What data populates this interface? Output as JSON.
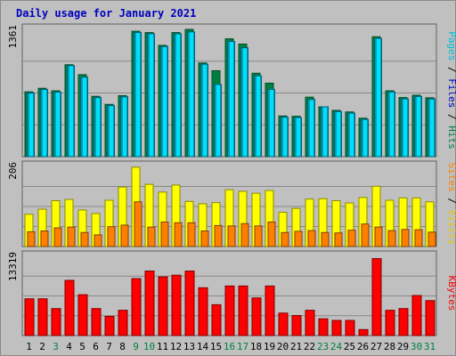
{
  "title": "Daily usage for January 2021",
  "colors": {
    "hits": "#008040",
    "files": "#00C8F8",
    "pages": "#00E0F8",
    "visits": "#FFFF00",
    "sites": "#FF8000",
    "kbytes": "#FF0000",
    "day_weekday": "#000000",
    "day_weekend": "#008040"
  },
  "chart_data": [
    {
      "type": "bar",
      "panel": "hits-files-pages",
      "axis_max_label": "1361",
      "ylim": [
        0,
        1361
      ],
      "right_label": [
        "Pages",
        " / ",
        "Files",
        " / ",
        "Hits"
      ],
      "right_label_colors": [
        "#00C0D8",
        "#000000",
        "#0000C0",
        "#000000",
        "#008040"
      ],
      "categories": [
        "1",
        "2",
        "3",
        "4",
        "5",
        "6",
        "7",
        "8",
        "9",
        "10",
        "11",
        "12",
        "13",
        "14",
        "15",
        "16",
        "17",
        "18",
        "19",
        "20",
        "21",
        "22",
        "23",
        "24",
        "25",
        "26",
        "27",
        "28",
        "29",
        "30",
        "31"
      ],
      "series": [
        {
          "name": "Hits",
          "values": [
            693,
            731,
            704,
            983,
            877,
            645,
            559,
            652,
            1341,
            1327,
            1190,
            1327,
            1361,
            1002,
            919,
            1260,
            1204,
            892,
            786,
            435,
            432,
            636,
            533,
            495,
            478,
            411,
            1282,
            704,
            632,
            657,
            630
          ]
        },
        {
          "name": "Files",
          "values": [
            680,
            718,
            690,
            973,
            850,
            632,
            546,
            639,
            1327,
            1314,
            1177,
            1314,
            1334,
            988,
            772,
            1232,
            1164,
            865,
            719,
            422,
            418,
            611,
            533,
            482,
            465,
            398,
            1264,
            692,
            618,
            643,
            616
          ]
        },
        {
          "name": "Pages",
          "values": [
            680,
            718,
            690,
            973,
            850,
            632,
            546,
            639,
            1327,
            1314,
            1177,
            1314,
            1334,
            988,
            772,
            1232,
            1164,
            865,
            719,
            422,
            418,
            611,
            533,
            482,
            465,
            398,
            1264,
            692,
            618,
            643,
            616
          ]
        }
      ]
    },
    {
      "type": "bar",
      "panel": "visits-sites",
      "axis_max_label": "206",
      "ylim": [
        0,
        206
      ],
      "right_label": [
        "Sites",
        " / ",
        "Visits"
      ],
      "right_label_colors": [
        "#FF8000",
        "#000000",
        "#E8C800"
      ],
      "categories": [
        "1",
        "2",
        "3",
        "4",
        "5",
        "6",
        "7",
        "8",
        "9",
        "10",
        "11",
        "12",
        "13",
        "14",
        "15",
        "16",
        "17",
        "18",
        "19",
        "20",
        "21",
        "22",
        "23",
        "24",
        "25",
        "26",
        "27",
        "28",
        "29",
        "30",
        "31"
      ],
      "series": [
        {
          "name": "Visits",
          "values": [
            83,
            96,
            118,
            121,
            94,
            85,
            119,
            153,
            204,
            160,
            140,
            158,
            116,
            110,
            113,
            146,
            142,
            137,
            144,
            88,
            98,
            122,
            123,
            118,
            112,
            126,
            155,
            119,
            125,
            125,
            115
          ]
        },
        {
          "name": "Sites",
          "values": [
            38,
            40,
            48,
            50,
            36,
            30,
            51,
            55,
            115,
            50,
            63,
            61,
            61,
            40,
            54,
            53,
            59,
            53,
            63,
            36,
            39,
            41,
            36,
            35,
            42,
            58,
            50,
            41,
            44,
            43,
            37
          ]
        }
      ]
    },
    {
      "type": "bar",
      "panel": "kbytes",
      "axis_max_label": "13319",
      "ylim": [
        0,
        13319
      ],
      "right_label": [
        "KBytes"
      ],
      "right_label_colors": [
        "#FF0000"
      ],
      "categories": [
        "1",
        "2",
        "3",
        "4",
        "5",
        "6",
        "7",
        "8",
        "9",
        "10",
        "11",
        "12",
        "13",
        "14",
        "15",
        "16",
        "17",
        "18",
        "19",
        "20",
        "21",
        "22",
        "23",
        "24",
        "25",
        "26",
        "27",
        "28",
        "29",
        "30",
        "31"
      ],
      "series": [
        {
          "name": "KBytes",
          "values": [
            6178,
            6178,
            4532,
            9276,
            6864,
            4532,
            3225,
            4244,
            9573,
            10844,
            9867,
            10144,
            10844,
            8031,
            5182,
            8327,
            8327,
            6315,
            8327,
            3775,
            3362,
            4244,
            2813,
            2538,
            2538,
            1000,
            12930,
            4244,
            4532,
            6728,
            5869
          ]
        }
      ]
    }
  ],
  "weekend_days": [
    "3",
    "9",
    "10",
    "16",
    "17",
    "23",
    "24",
    "30",
    "31"
  ]
}
